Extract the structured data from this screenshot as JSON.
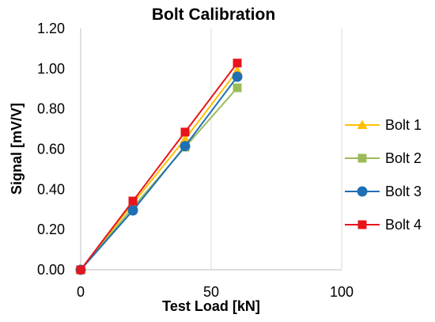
{
  "chart_data": {
    "type": "line",
    "title": "Bolt Calibration",
    "xlabel": "Test Load [kN]",
    "ylabel": "Signal [mV/V]",
    "xlim": [
      0,
      100
    ],
    "ylim": [
      0,
      1.2
    ],
    "xticks": [
      0,
      50,
      100
    ],
    "xtick_labels": [
      "0",
      "50",
      "100"
    ],
    "yticks": [
      0,
      0.2,
      0.4,
      0.6,
      0.8,
      1.0,
      1.2
    ],
    "ytick_labels": [
      "0.00",
      "0.20",
      "0.40",
      "0.60",
      "0.80",
      "1.00",
      "1.20"
    ],
    "grid": "vertical",
    "legend_position": "right",
    "series": [
      {
        "name": "Bolt 1",
        "color": "#FFC000",
        "marker": "triangle",
        "x": [
          0,
          20,
          40,
          60
        ],
        "y": [
          0,
          0.33,
          0.65,
          0.99
        ]
      },
      {
        "name": "Bolt 2",
        "color": "#9BBB59",
        "marker": "square",
        "x": [
          0,
          20,
          40,
          60
        ],
        "y": [
          0,
          0.31,
          0.61,
          0.905
        ]
      },
      {
        "name": "Bolt 3",
        "color": "#1F6FB5",
        "marker": "circle",
        "x": [
          0,
          20,
          40,
          60
        ],
        "y": [
          0,
          0.295,
          0.615,
          0.96
        ]
      },
      {
        "name": "Bolt 4",
        "color": "#E8141B",
        "marker": "square",
        "x": [
          0,
          20,
          40,
          60
        ],
        "y": [
          0,
          0.342,
          0.685,
          1.028
        ]
      }
    ]
  }
}
